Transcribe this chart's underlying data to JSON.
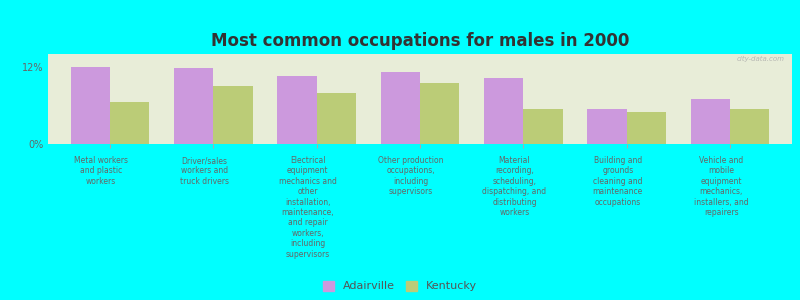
{
  "title": "Most common occupations for males in 2000",
  "background_color": "#00FFFF",
  "plot_background_color": "#E8EDD8",
  "bar_color_adairville": "#CC99DD",
  "bar_color_kentucky": "#BBCC77",
  "categories": [
    "Metal workers\nand plastic\nworkers",
    "Driver/sales\nworkers and\ntruck drivers",
    "Electrical\nequipment\nmechanics and\nother\ninstallation,\nmaintenance,\nand repair\nworkers,\nincluding\nsupervisors",
    "Other production\noccupations,\nincluding\nsupervisors",
    "Material\nrecording,\nscheduling,\ndispatching, and\ndistributing\nworkers",
    "Building and\ngrounds\ncleaning and\nmaintenance\noccupations",
    "Vehicle and\nmobile\nequipment\nmechanics,\ninstallers, and\nrepairers"
  ],
  "adairville_values": [
    12.0,
    11.8,
    10.5,
    11.2,
    10.2,
    5.5,
    7.0
  ],
  "kentucky_values": [
    6.5,
    9.0,
    8.0,
    9.5,
    5.5,
    5.0,
    5.5
  ],
  "ylim": [
    0,
    14
  ],
  "yticks": [
    0,
    12
  ],
  "ytick_labels": [
    "0%",
    "12%"
  ],
  "legend_adairville": "Adairville",
  "legend_kentucky": "Kentucky",
  "watermark": "city-data.com"
}
